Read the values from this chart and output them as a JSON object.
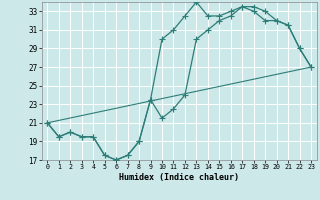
{
  "xlabel": "Humidex (Indice chaleur)",
  "bg_color": "#cce8e8",
  "grid_color": "#ffffff",
  "line_color": "#2d7d78",
  "xlim": [
    -0.5,
    23.5
  ],
  "ylim": [
    17,
    34
  ],
  "xticks": [
    0,
    1,
    2,
    3,
    4,
    5,
    6,
    7,
    8,
    9,
    10,
    11,
    12,
    13,
    14,
    15,
    16,
    17,
    18,
    19,
    20,
    21,
    22,
    23
  ],
  "yticks": [
    17,
    19,
    21,
    23,
    25,
    27,
    29,
    31,
    33
  ],
  "curve1_x": [
    0,
    1,
    2,
    3,
    4,
    5,
    6,
    7,
    8,
    9,
    10,
    11,
    12,
    13,
    14,
    15,
    16,
    17,
    18,
    19,
    20,
    21,
    22,
    23
  ],
  "curve1_y": [
    21.0,
    19.5,
    20.0,
    19.5,
    19.5,
    17.5,
    17.0,
    17.5,
    19.0,
    23.5,
    30.0,
    31.0,
    32.5,
    34.0,
    32.5,
    32.5,
    33.0,
    33.5,
    33.5,
    33.0,
    32.0,
    31.5,
    29.0,
    27.0
  ],
  "curve2_x": [
    0,
    1,
    2,
    3,
    4,
    5,
    6,
    7,
    8,
    9,
    10,
    11,
    12,
    13,
    14,
    15,
    16,
    17,
    18,
    19,
    20,
    21,
    22,
    23
  ],
  "curve2_y": [
    21.0,
    19.5,
    20.0,
    19.5,
    19.5,
    17.5,
    17.0,
    17.5,
    19.0,
    23.5,
    21.5,
    22.5,
    24.0,
    30.0,
    31.0,
    32.0,
    32.5,
    33.5,
    33.0,
    32.0,
    32.0,
    31.5,
    29.0,
    27.0
  ],
  "curve3_x": [
    0,
    23
  ],
  "curve3_y": [
    21.0,
    27.0
  ]
}
